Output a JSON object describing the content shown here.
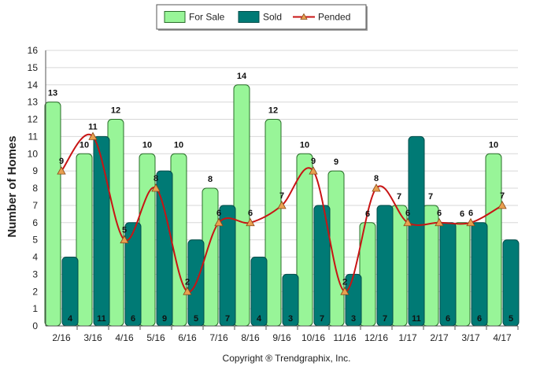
{
  "chart_data": {
    "type": "bar",
    "title": "",
    "xlabel": "",
    "ylabel": "Number of Homes",
    "ylim": [
      0,
      16
    ],
    "y_ticks": [
      0,
      1,
      2,
      3,
      4,
      5,
      6,
      7,
      8,
      9,
      10,
      11,
      12,
      13,
      14,
      15,
      16
    ],
    "grid": true,
    "legend_position": "top-center",
    "categories": [
      "2/16",
      "3/16",
      "4/16",
      "5/16",
      "6/16",
      "7/16",
      "8/16",
      "9/16",
      "10/16",
      "11/16",
      "12/16",
      "1/17",
      "2/17",
      "3/17",
      "4/17"
    ],
    "series": [
      {
        "name": "For Sale",
        "type": "bar",
        "color": "#98f598",
        "values": [
          13,
          10,
          12,
          10,
          10,
          8,
          14,
          12,
          10,
          9,
          6,
          7,
          7,
          6,
          10
        ]
      },
      {
        "name": "Sold",
        "type": "bar",
        "color": "#007a75",
        "values": [
          4,
          11,
          6,
          9,
          5,
          7,
          4,
          3,
          7,
          3,
          7,
          11,
          6,
          6,
          5
        ]
      },
      {
        "name": "Pended",
        "type": "line",
        "color": "#c81414",
        "marker_color": "#e8a050",
        "values": [
          9,
          11,
          5,
          8,
          2,
          6,
          6,
          7,
          9,
          2,
          8,
          6,
          6,
          6,
          7
        ]
      }
    ]
  },
  "footer": {
    "copyright": "Copyright ® Trendgraphix, Inc."
  }
}
